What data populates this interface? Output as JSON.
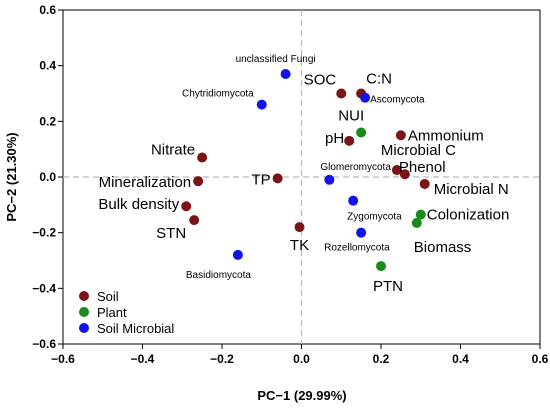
{
  "chart_data": {
    "type": "scatter",
    "xlabel": "PC−1 (29.99%)",
    "ylabel": "PC−2 (21.30%)",
    "xlim": [
      -0.6,
      0.6
    ],
    "ylim": [
      -0.6,
      0.6
    ],
    "x_ticks": [
      "−0.6",
      "−0.4",
      "−0.2",
      "0.0",
      "0.2",
      "0.4",
      "0.6"
    ],
    "y_ticks": [
      "0.6",
      "0.4",
      "0.2",
      "0.0",
      "−0.2",
      "−0.4",
      "−0.6"
    ],
    "legend_placement": "bottom-left",
    "grid": false,
    "reference_lines": "dashed lines at x=0 and y=0",
    "series": [
      {
        "name": "Soil",
        "color": "#7b1416",
        "points": [
          {
            "label": "SOC",
            "x": 0.1,
            "y": 0.3
          },
          {
            "label": "C:N",
            "x": 0.15,
            "y": 0.3
          },
          {
            "label": "pH",
            "x": 0.12,
            "y": 0.13
          },
          {
            "label": "Ammonium",
            "x": 0.25,
            "y": 0.15
          },
          {
            "label": "Microbial C",
            "x": 0.24,
            "y": 0.025
          },
          {
            "label": "Phenol",
            "x": 0.26,
            "y": 0.01
          },
          {
            "label": "Microbial N",
            "x": 0.31,
            "y": -0.025
          },
          {
            "label": "Nitrate",
            "x": -0.25,
            "y": 0.07
          },
          {
            "label": "Mineralization",
            "x": -0.26,
            "y": -0.015
          },
          {
            "label": "TP",
            "x": -0.06,
            "y": -0.005
          },
          {
            "label": "Bulk density",
            "x": -0.29,
            "y": -0.105
          },
          {
            "label": "STN",
            "x": -0.27,
            "y": -0.155
          },
          {
            "label": "TK",
            "x": -0.005,
            "y": -0.18
          }
        ]
      },
      {
        "name": "Plant",
        "color": "#1a8a1a",
        "points": [
          {
            "label": "NUI",
            "x": 0.15,
            "y": 0.16
          },
          {
            "label": "Colonization",
            "x": 0.3,
            "y": -0.135
          },
          {
            "label": "Biomass",
            "x": 0.29,
            "y": -0.165
          },
          {
            "label": "PTN",
            "x": 0.2,
            "y": -0.32
          }
        ]
      },
      {
        "name": "Soil Microbial",
        "color": "#1212ee",
        "points": [
          {
            "label": "unclassified Fungi",
            "x": -0.04,
            "y": 0.37
          },
          {
            "label": "Chytridiomycota",
            "x": -0.1,
            "y": 0.26
          },
          {
            "label": "Ascomycota",
            "x": 0.16,
            "y": 0.285
          },
          {
            "label": "Glomeromycota",
            "x": 0.07,
            "y": -0.01
          },
          {
            "label": "Zygomycota",
            "x": 0.13,
            "y": -0.085
          },
          {
            "label": "Rozellomycota",
            "x": 0.15,
            "y": -0.2
          },
          {
            "label": "Basidiomycota",
            "x": -0.16,
            "y": -0.28
          }
        ]
      }
    ]
  }
}
